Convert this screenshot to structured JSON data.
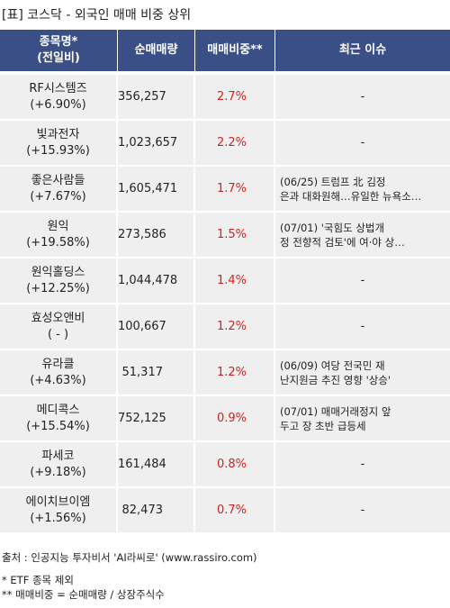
{
  "title": "[표] 코스닥 - 외국인 매매 비중 상위",
  "header": {
    "name_line1": "종목명*",
    "name_line2": "(전일비)",
    "volume": "순매매량",
    "ratio": "매매비중**",
    "issue": "최근 이슈"
  },
  "rows": [
    {
      "name": "RF시스템즈",
      "change": "(+6.90%)",
      "volume": "356,257",
      "ratio": "2.7%",
      "issue1": "-",
      "issue2": ""
    },
    {
      "name": "빛과전자",
      "change": "(+15.93%)",
      "volume": "1,023,657",
      "ratio": "2.2%",
      "issue1": "-",
      "issue2": ""
    },
    {
      "name": "좋은사람들",
      "change": "(+7.67%)",
      "volume": "1,605,471",
      "ratio": "1.7%",
      "issue1": "(06/25) 트럼프 北 김정",
      "issue2": "은과 대화원해…유일한 뉴욕소…"
    },
    {
      "name": "원익",
      "change": "(+19.58%)",
      "volume": "273,586",
      "ratio": "1.5%",
      "issue1": "(07/01) '국힘도 상법개",
      "issue2": "정 전향적 검토'에 여·야 상…"
    },
    {
      "name": "원익홀딩스",
      "change": "(+12.25%)",
      "volume": "1,044,478",
      "ratio": "1.4%",
      "issue1": "-",
      "issue2": ""
    },
    {
      "name": "효성오앤비",
      "change": "( - )",
      "volume": "100,667",
      "ratio": "1.2%",
      "issue1": "-",
      "issue2": ""
    },
    {
      "name": "유라클",
      "change": "(+4.63%)",
      "volume": "51,317",
      "ratio": "1.2%",
      "issue1": "(06/09) 여당 전국민 재",
      "issue2": "난지원금 추진 영향 '상승'"
    },
    {
      "name": "메디콕스",
      "change": "(+15.54%)",
      "volume": "752,125",
      "ratio": "0.9%",
      "issue1": "(07/01) 매매거래정지 앞",
      "issue2": "두고 장 초반 급등세"
    },
    {
      "name": "파세코",
      "change": "(+9.18%)",
      "volume": "161,484",
      "ratio": "0.8%",
      "issue1": "-",
      "issue2": ""
    },
    {
      "name": "에이치브이엠",
      "change": "(+1.56%)",
      "volume": "82,473",
      "ratio": "0.7%",
      "issue1": "-",
      "issue2": ""
    }
  ],
  "footer": {
    "source": "출처 : 인공지능 투자비서 'AI라씨로' (www.rassiro.com)",
    "note1": "* ETF 종목 제외",
    "note2": "** 매매비중 = 순매매량 / 상장주식수"
  },
  "colors": {
    "header_bg": "#3b4f87",
    "row_bg": "#efefef",
    "ratio_text": "#d62020"
  }
}
